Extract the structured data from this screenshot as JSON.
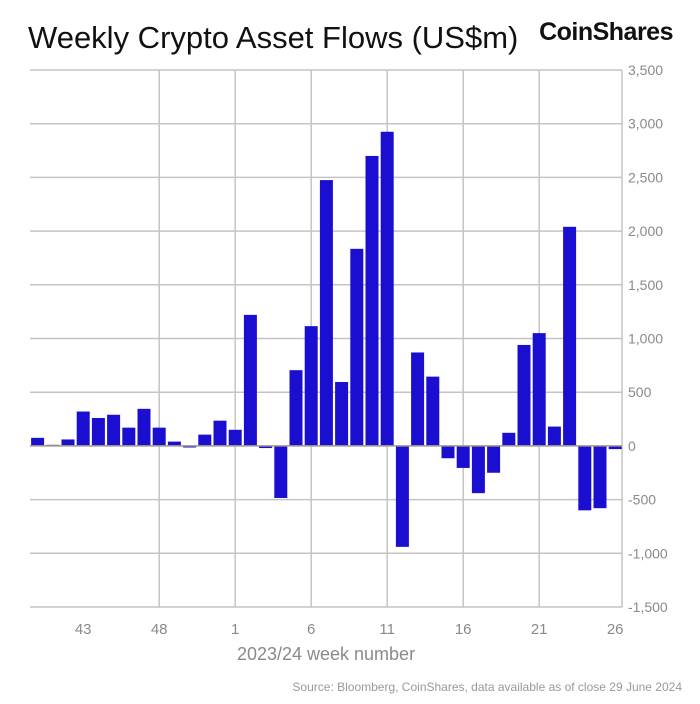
{
  "title": "Weekly Crypto Asset Flows (US$m)",
  "brand": "CoinShares",
  "source": "Source: Bloomberg, CoinShares, data available as of close 29 June 2024",
  "chart_data": {
    "type": "bar",
    "title": "Weekly Crypto Asset Flows (US$m)",
    "xlabel": "2023/24 week number",
    "ylabel": "",
    "ylim": [
      -1500,
      3500
    ],
    "yticks": [
      3500,
      3000,
      2500,
      2000,
      1500,
      1000,
      500,
      0,
      -500,
      -1000,
      -1500
    ],
    "ytick_labels": [
      "3,500",
      "3,000",
      "2,500",
      "2,000",
      "1,500",
      "1,000",
      "500",
      "0",
      "-500",
      "-1,000",
      "-1,500"
    ],
    "xtick_labels": [
      "43",
      "48",
      "1",
      "6",
      "11",
      "16",
      "21",
      "26"
    ],
    "grid": true,
    "bar_color": "#1a0fd1",
    "categories": [
      "40",
      "41",
      "42",
      "43",
      "44",
      "45",
      "46",
      "47",
      "48",
      "49",
      "50",
      "51",
      "52",
      "1",
      "2",
      "3",
      "4",
      "5",
      "6",
      "7",
      "8",
      "9",
      "10",
      "11",
      "12",
      "13",
      "14",
      "15",
      "16",
      "17",
      "18",
      "19",
      "20",
      "21",
      "22",
      "23",
      "24",
      "25",
      "26"
    ],
    "values": [
      75,
      10,
      60,
      320,
      260,
      290,
      170,
      345,
      170,
      40,
      -15,
      105,
      235,
      150,
      1220,
      -20,
      -485,
      705,
      1115,
      2475,
      595,
      1835,
      2700,
      2925,
      -940,
      870,
      645,
      -115,
      -205,
      -440,
      -250,
      122,
      940,
      1050,
      180,
      2040,
      -600,
      -580,
      -30
    ]
  }
}
